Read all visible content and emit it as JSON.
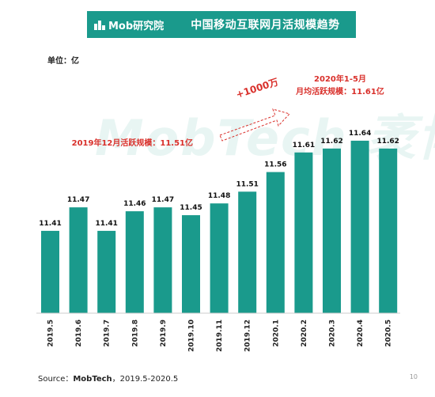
{
  "header": {
    "logo_text": "Mob研究院",
    "title": "中国移动互联网月活规模趋势"
  },
  "unit_label": "单位：亿",
  "watermark": "MobTech 袤博",
  "annotations": {
    "left_note": "2019年12月活跃规模：11.51亿",
    "growth_note": "+1000万",
    "right_note_line1": "2020年1-5月",
    "right_note_line2": "月均活跃规模：11.61亿"
  },
  "footer": {
    "source_prefix": "Source：",
    "source_name": "MobTech",
    "source_suffix": "，2019.5-2020.5",
    "page_number": "10"
  },
  "colors": {
    "bar": "#1a9a8c",
    "header_bg": "#1a9a8c",
    "annotation": "#d9302b"
  },
  "chart_data": {
    "type": "bar",
    "title": "中国移动互联网月活规模趋势",
    "ylabel": "单位：亿",
    "categories": [
      "2019.5",
      "2019.6",
      "2019.7",
      "2019.8",
      "2019.9",
      "2019.10",
      "2019.11",
      "2019.12",
      "2020.1",
      "2020.2",
      "2020.3",
      "2020.4",
      "2020.5"
    ],
    "values": [
      11.41,
      11.47,
      11.41,
      11.46,
      11.47,
      11.45,
      11.48,
      11.51,
      11.56,
      11.61,
      11.62,
      11.64,
      11.62
    ],
    "data_labels": [
      "11.41",
      "11.47",
      "11.41",
      "11.46",
      "11.47",
      "11.45",
      "11.48",
      "11.51",
      "11.56",
      "11.61",
      "11.62",
      "11.64",
      "11.62"
    ],
    "ylim": [
      11.2,
      11.66
    ],
    "grid": false,
    "legend": "none"
  }
}
